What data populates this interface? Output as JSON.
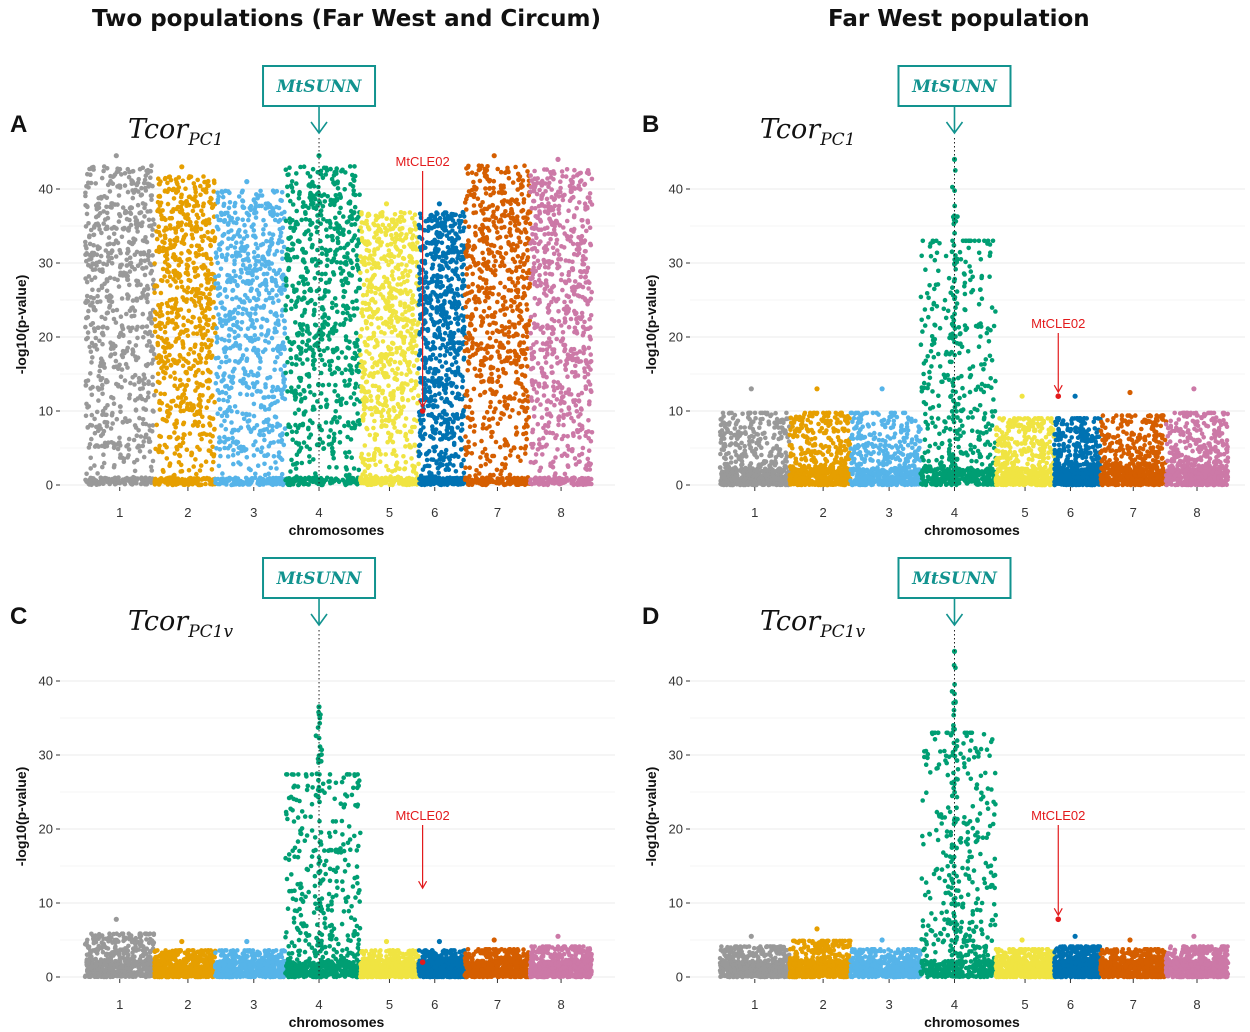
{
  "headers": {
    "left": "Two populations (Far West and Circum)",
    "right": "Far West population"
  },
  "colors": {
    "chromosomes": [
      "#999999",
      "#e69f00",
      "#56b4e9",
      "#009e73",
      "#f0e442",
      "#0072b2",
      "#d55e00",
      "#cc79a7"
    ],
    "highlight": "#e31a1c",
    "gene_box": "#12938f"
  },
  "chart_data": [
    {
      "type": "scatter",
      "panel": "A",
      "title": "Tcor",
      "title_subscript": "PC1",
      "xlabel": "chromosomes",
      "ylabel": "-log10(p-value)",
      "categories": [
        "1",
        "2",
        "3",
        "4",
        "5",
        "6",
        "7",
        "8"
      ],
      "ylim": [
        0,
        45
      ],
      "yticks": [
        0,
        10,
        20,
        30,
        40
      ],
      "grid": true,
      "chromosome_max": [
        44.5,
        43,
        41,
        44.5,
        38,
        38,
        44.5,
        44
      ],
      "gene_marker": {
        "label": "MtSUNN",
        "chromosome": 4
      },
      "annotation": {
        "label": "MtCLE02",
        "chromosome": 6,
        "value": 10
      }
    },
    {
      "type": "scatter",
      "panel": "B",
      "title": "Tcor",
      "title_subscript": "PC1",
      "xlabel": "chromosomes",
      "ylabel": "-log10(p-value)",
      "categories": [
        "1",
        "2",
        "3",
        "4",
        "5",
        "6",
        "7",
        "8"
      ],
      "ylim": [
        0,
        45
      ],
      "yticks": [
        0,
        10,
        20,
        30,
        40
      ],
      "grid": true,
      "chromosome_max": [
        13,
        13,
        13,
        44,
        12,
        12,
        12.5,
        13
      ],
      "gene_marker": {
        "label": "MtSUNN",
        "chromosome": 4
      },
      "annotation": {
        "label": "MtCLE02",
        "chromosome": 6,
        "value": 12
      }
    },
    {
      "type": "scatter",
      "panel": "C",
      "title": "Tcor",
      "title_subscript": "PC1v",
      "xlabel": "chromosomes",
      "ylabel": "-log10(p-value)",
      "categories": [
        "1",
        "2",
        "3",
        "4",
        "5",
        "6",
        "7",
        "8"
      ],
      "ylim": [
        0,
        45
      ],
      "yticks": [
        0,
        10,
        20,
        30,
        40
      ],
      "grid": true,
      "chromosome_max": [
        7.8,
        4.8,
        4.8,
        36.5,
        4.8,
        4.8,
        5,
        5.5
      ],
      "gene_marker": {
        "label": "MtSUNN",
        "chromosome": 4
      },
      "annotation": {
        "label": "MtCLE02",
        "chromosome": 6,
        "value": 2
      }
    },
    {
      "type": "scatter",
      "panel": "D",
      "title": "Tcor",
      "title_subscript": "PC1v",
      "xlabel": "chromosomes",
      "ylabel": "-log10(p-value)",
      "categories": [
        "1",
        "2",
        "3",
        "4",
        "5",
        "6",
        "7",
        "8"
      ],
      "ylim": [
        0,
        45
      ],
      "yticks": [
        0,
        10,
        20,
        30,
        40
      ],
      "grid": true,
      "chromosome_max": [
        5.5,
        6.5,
        5,
        44,
        5,
        5.5,
        5,
        5.5
      ],
      "gene_marker": {
        "label": "MtSUNN",
        "chromosome": 4
      },
      "annotation": {
        "label": "MtCLE02",
        "chromosome": 6,
        "value": 7.8
      }
    }
  ]
}
